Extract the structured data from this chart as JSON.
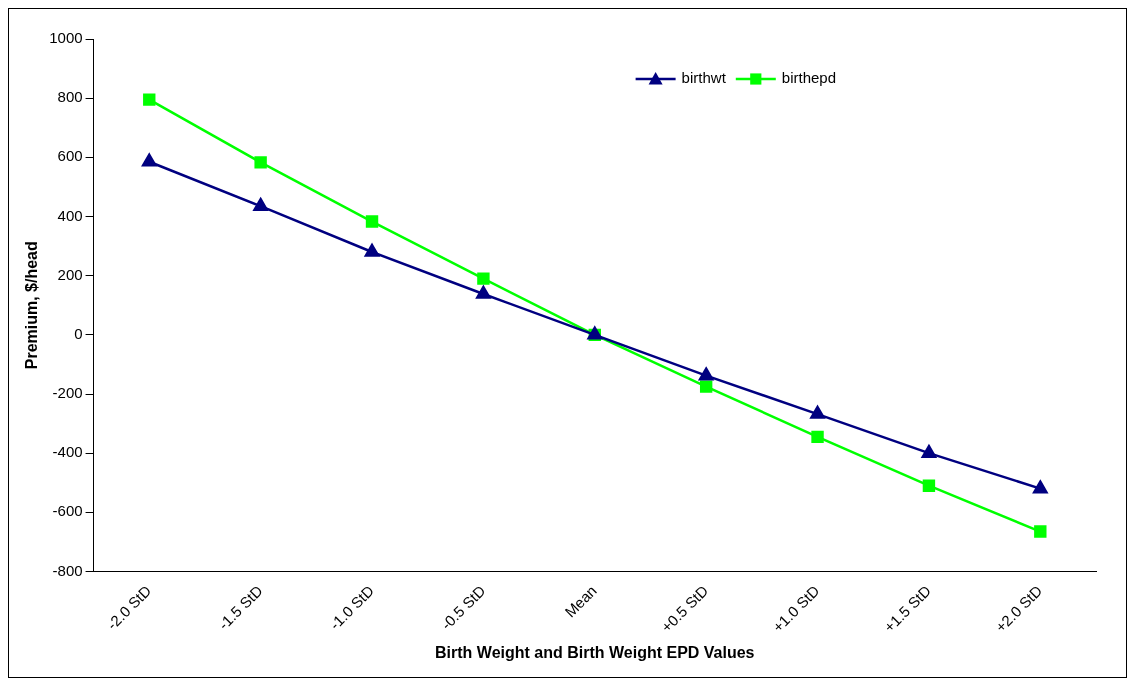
{
  "chart_data": {
    "type": "line",
    "xlabel": "Birth Weight and Birth Weight EPD Values",
    "ylabel": "Premium, $/head",
    "categories": [
      "-2.0 StD",
      "-1.5 StD",
      "-1.0 StD",
      "-0.5 StD",
      "Mean",
      "+0.5 StD",
      "+1.0 StD",
      "+1.5 StD",
      "+2.0 StD"
    ],
    "series": [
      {
        "name": "birthwt",
        "color": "#000080",
        "marker": "triangle",
        "values": [
          585,
          435,
          280,
          138,
          0,
          -138,
          -268,
          -400,
          -520
        ]
      },
      {
        "name": "birthepd",
        "color": "#00ff00",
        "marker": "square",
        "values": [
          795,
          583,
          383,
          190,
          0,
          -175,
          -345,
          -510,
          -665
        ]
      }
    ],
    "ylim": [
      -800,
      1000
    ],
    "yticks": [
      -800,
      -600,
      -400,
      -200,
      0,
      200,
      400,
      600,
      800,
      1000
    ],
    "grid": false,
    "legend": "top right",
    "line_style": "solid"
  }
}
